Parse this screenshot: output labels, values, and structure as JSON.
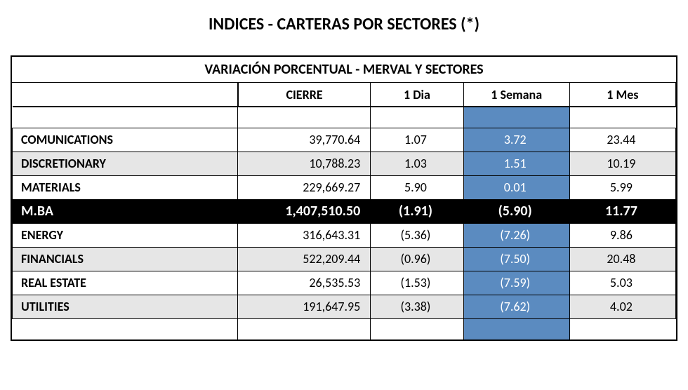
{
  "title": "INDICES - CARTERAS POR SECTORES (*)",
  "subtitle": "VARIACIÓN PORCENTUAL - MERVAL Y SECTORES",
  "columns": {
    "label": "",
    "cierre": "CIERRE",
    "dia": "1 Dia",
    "semana": "1 Semana",
    "mes": "1 Mes"
  },
  "rows": [
    {
      "label": "COMUNICATIONS",
      "cierre": "39,770.64",
      "dia": "1.07",
      "semana": "3.72",
      "mes": "23.44",
      "alt": false,
      "highlight_semana": true
    },
    {
      "label": "DISCRETIONARY",
      "cierre": "10,788.23",
      "dia": "1.03",
      "semana": "1.51",
      "mes": "10.19",
      "alt": true,
      "highlight_semana": true
    },
    {
      "label": "MATERIALS",
      "cierre": "229,669.27",
      "dia": "5.90",
      "semana": "0.01",
      "mes": "5.99",
      "alt": false,
      "highlight_semana": true
    },
    {
      "label": "M.BA",
      "cierre": "1,407,510.50",
      "dia": "(1.91)",
      "semana": "(5.90)",
      "mes": "11.77",
      "mba": true
    },
    {
      "label": "ENERGY",
      "cierre": "316,643.31",
      "dia": "(5.36)",
      "semana": "(7.26)",
      "mes": "9.86",
      "alt": false,
      "highlight_semana": true
    },
    {
      "label": "FINANCIALS",
      "cierre": "522,209.44",
      "dia": "(0.96)",
      "semana": "(7.50)",
      "mes": "20.48",
      "alt": true,
      "highlight_semana": true
    },
    {
      "label": "REAL ESTATE",
      "cierre": "26,535.53",
      "dia": "(1.53)",
      "semana": "(7.59)",
      "mes": "5.03",
      "alt": false,
      "highlight_semana": true
    },
    {
      "label": "UTILITIES",
      "cierre": "191,647.95",
      "dia": "(3.38)",
      "semana": "(7.62)",
      "mes": "4.02",
      "alt": true,
      "highlight_semana": true
    }
  ],
  "style": {
    "highlight_bg": "#5b8bc0",
    "alt_bg": "#e6e6e6",
    "mba_bg": "#000000"
  }
}
